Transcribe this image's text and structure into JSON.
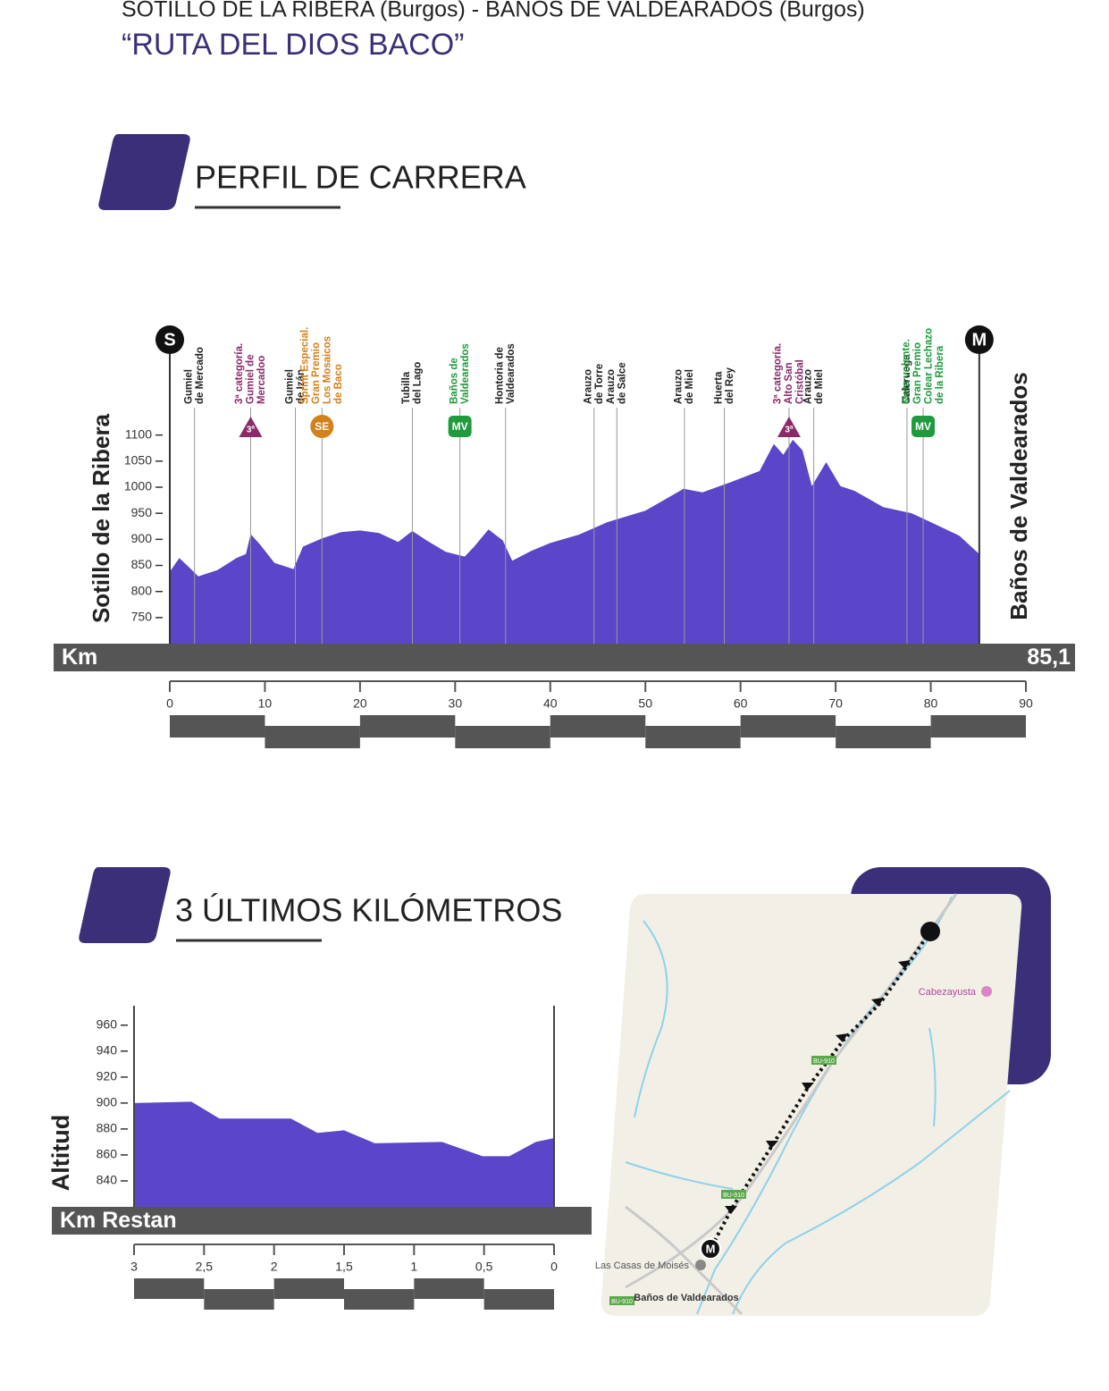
{
  "header": {
    "route": "SOTILLO DE LA RIBERA (Burgos) - BAÑOS DE VALDEARADOS (Burgos)",
    "title": "“RUTA DEL DIOS BACO”"
  },
  "sections": [
    {
      "title": "PERFIL DE CARRERA"
    },
    {
      "title": "3 ÚLTIMOS KILÓMETROS"
    }
  ],
  "chart_data": [
    {
      "type": "area",
      "color": "#5b45c9",
      "start_label": "Sotillo de la Ribera",
      "finish_label": "Baños de Valdearados",
      "start_marker": "S",
      "finish_marker": "M",
      "xlabel": "Km",
      "end": {
        "value": 85.1,
        "label": "85,1"
      },
      "x": [
        0,
        1,
        2,
        3,
        5,
        7,
        8,
        8.5,
        9.5,
        11,
        13,
        14,
        16,
        18,
        20,
        22,
        24,
        25.5,
        27,
        29,
        31,
        32,
        33.5,
        35,
        36,
        38,
        40,
        43,
        46,
        50,
        54,
        56,
        59,
        62,
        63.5,
        64.5,
        65.5,
        66.5,
        67.5,
        69,
        70.5,
        72,
        75,
        78,
        80,
        83,
        85.1
      ],
      "values": [
        838,
        864,
        847,
        829,
        841,
        864,
        872,
        910,
        890,
        855,
        843,
        886,
        902,
        914,
        917,
        912,
        895,
        916,
        898,
        876,
        867,
        886,
        919,
        898,
        859,
        878,
        893,
        909,
        933,
        955,
        997,
        990,
        1010,
        1031,
        1083,
        1062,
        1091,
        1071,
        1002,
        1048,
        1002,
        993,
        962,
        950,
        933,
        907,
        872
      ],
      "xlim": [
        0,
        90
      ],
      "ylim": [
        700,
        1300
      ],
      "xticks": [
        0,
        10,
        20,
        30,
        40,
        50,
        60,
        70,
        80,
        90
      ],
      "yticks": [
        750,
        800,
        850,
        900,
        950,
        1000,
        1050,
        1100
      ],
      "waypoints": [
        {
          "km": 2.6,
          "lines": [
            "Gumiel",
            "de Mercado"
          ],
          "color": "#222222"
        },
        {
          "km": 8.5,
          "lines": [
            "3ª categoría.",
            "Gumiel de",
            "Mercadoo"
          ],
          "color": "#8a2a6a",
          "badge": {
            "text": "3ª",
            "shape": "triangle"
          }
        },
        {
          "km": 13.2,
          "lines": [
            "Gumiel",
            "de Izán"
          ],
          "color": "#222222"
        },
        {
          "km": 16,
          "lines": [
            "Sprint Especial.",
            "Gran Premio",
            "Los Mosaicos",
            "de Baco"
          ],
          "color": "#d4801c",
          "badge": {
            "text": "SE",
            "shape": "circle"
          }
        },
        {
          "km": 25.5,
          "lines": [
            "Tubilla",
            "del Lago"
          ],
          "color": "#222222"
        },
        {
          "km": 30.5,
          "lines": [
            "Baños de",
            "Valdearados"
          ],
          "color": "#1f9a3c",
          "badge": {
            "text": "MV",
            "shape": "rect"
          }
        },
        {
          "km": 35.3,
          "lines": [
            "Hontoria de",
            "Valdearados"
          ],
          "color": "#222222"
        },
        {
          "km": 44.6,
          "lines": [
            "Arauzo",
            "de Torre"
          ],
          "color": "#222222"
        },
        {
          "km": 47,
          "lines": [
            "Arauzo",
            "de Salce"
          ],
          "color": "#222222"
        },
        {
          "km": 54.1,
          "lines": [
            "Arauzo",
            "de Miel"
          ],
          "color": "#222222"
        },
        {
          "km": 58.3,
          "lines": [
            "Huerta",
            "del Rey"
          ],
          "color": "#222222"
        },
        {
          "km": 65.1,
          "lines": [
            "3ª categoría.",
            "Alto San",
            "Cristóbal"
          ],
          "color": "#8a2a6a",
          "badge": {
            "text": "3ª",
            "shape": "triangle"
          }
        },
        {
          "km": 67.7,
          "lines": [
            "Arauzo",
            "de Miel"
          ],
          "color": "#222222"
        },
        {
          "km": 77.5,
          "lines": [
            "Caleruega"
          ],
          "color": "#222222"
        },
        {
          "km": 79.2,
          "lines": [
            "Meta volante.",
            "Gran Premio",
            "Colear Lechazo",
            "de la Ribera"
          ],
          "color": "#1f9a3c",
          "badge": {
            "text": "MV",
            "shape": "rect"
          }
        }
      ]
    },
    {
      "type": "area",
      "color": "#5b45c9",
      "ylabel": "Altitud",
      "xlabel": "Km Restan",
      "x": [
        3,
        2.59,
        2.39,
        1.88,
        1.69,
        1.5,
        1.28,
        0.8,
        0.51,
        0.32,
        0.13,
        0
      ],
      "values": [
        900,
        901,
        888,
        888,
        877,
        879,
        869,
        870,
        859,
        859,
        870,
        873
      ],
      "xlim": [
        3,
        0
      ],
      "ylim": [
        820,
        975
      ],
      "xticks": [
        3,
        {
          "value": 2.5,
          "label": "2,5"
        },
        2,
        {
          "value": 1.5,
          "label": "1,5"
        },
        1,
        {
          "value": 0.5,
          "label": "0,5"
        },
        0
      ],
      "yticks": [
        840,
        860,
        880,
        900,
        920,
        940,
        960
      ]
    }
  ],
  "map": {
    "places": [
      "Cabezayusta",
      "Las Casas de Moisés",
      "Baños de Valdearados"
    ],
    "roads": [
      "BU-910",
      "BU-910",
      "BU-910"
    ],
    "finish": "M"
  }
}
